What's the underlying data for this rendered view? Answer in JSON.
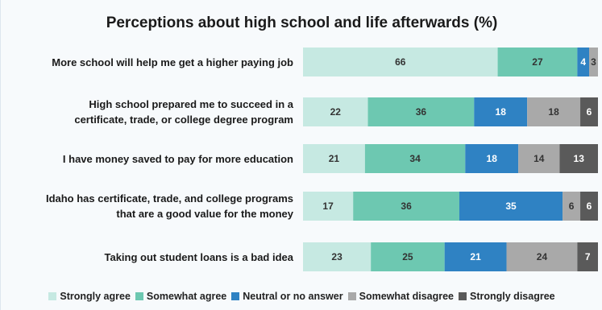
{
  "chart_data": {
    "type": "bar",
    "orientation": "horizontal-stacked",
    "title": "Perceptions about high school and life afterwards (%)",
    "categories": [
      "More school will help me get a higher paying job",
      "High school prepared me to succeed in a\ncertificate, trade, or college degree program",
      "I have money saved to pay for more education",
      "Idaho has certificate, trade, and college programs\nthat are a good value for the money",
      "Taking out student loans is a bad idea"
    ],
    "series": [
      {
        "name": "Strongly agree",
        "color": "#c6e9e2",
        "text_color": "#333333",
        "values": [
          66,
          22,
          21,
          17,
          23
        ]
      },
      {
        "name": "Somewhat agree",
        "color": "#6dc8b1",
        "text_color": "#333333",
        "values": [
          27,
          36,
          34,
          36,
          25
        ]
      },
      {
        "name": "Neutral or no answer",
        "color": "#2f82c3",
        "text_color": "#ffffff",
        "values": [
          4,
          18,
          18,
          35,
          21
        ]
      },
      {
        "name": "Somewhat disagree",
        "color": "#a9a9a9",
        "text_color": "#333333",
        "values": [
          3,
          18,
          14,
          6,
          24
        ]
      },
      {
        "name": "Strongly disagree",
        "color": "#5a5a5a",
        "text_color": "#ffffff",
        "values": [
          0,
          6,
          13,
          6,
          7
        ]
      }
    ],
    "xlim": [
      0,
      100
    ],
    "legend": "bottom",
    "grid": false
  }
}
